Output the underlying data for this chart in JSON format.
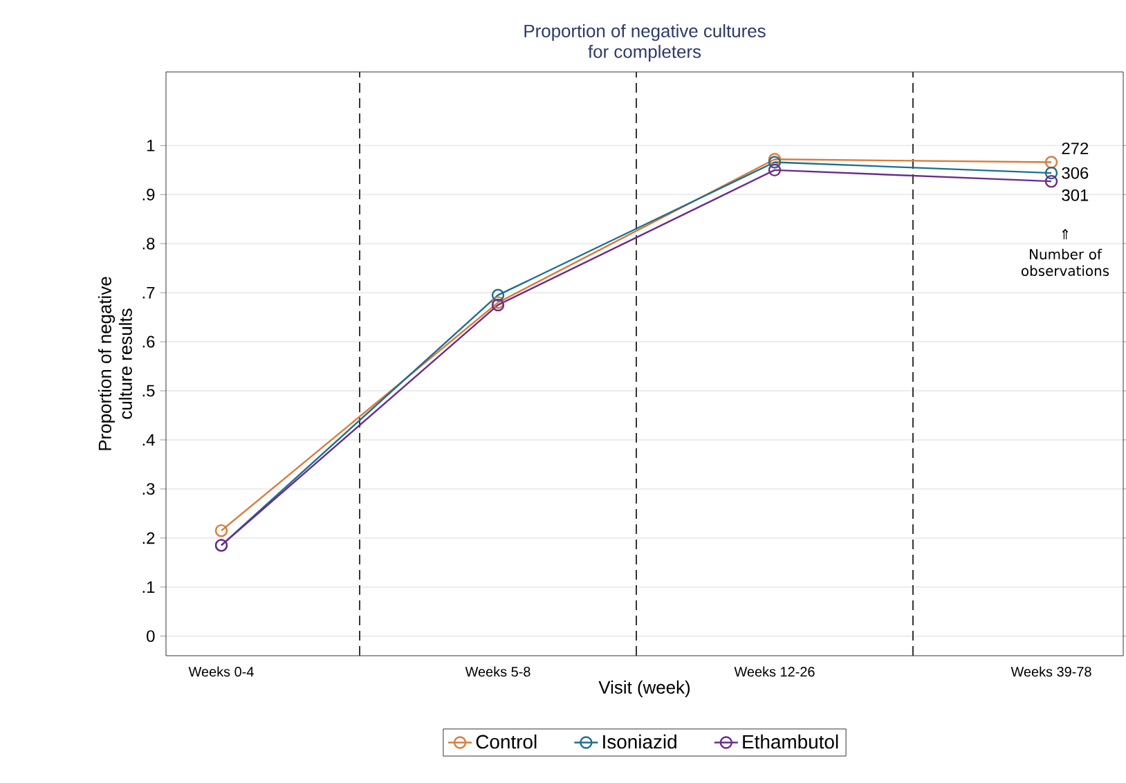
{
  "chart_data": {
    "type": "line",
    "title": "Proportion of negative cultures\nfor completers",
    "xlabel": "Visit (week)",
    "ylabel": "Proportion of negative\nculture results",
    "categories": [
      "Weeks 0-4",
      "Weeks 5-8",
      "Weeks 12-26",
      "Weeks 39-78"
    ],
    "series": [
      {
        "name": "Control",
        "color": "#d97b3a",
        "values": [
          0.215,
          0.68,
          0.972,
          0.966
        ]
      },
      {
        "name": "Isoniazid",
        "color": "#1f6e8c",
        "values": [
          0.185,
          0.695,
          0.966,
          0.944
        ]
      },
      {
        "name": "Ethambutol",
        "color": "#6a2c8a",
        "values": [
          0.185,
          0.675,
          0.95,
          0.927
        ]
      }
    ],
    "ylim": [
      -0.04,
      1.15
    ],
    "yticks": [
      0,
      {
        "value": 0.1,
        "label": ".1"
      },
      {
        "value": 0.2,
        "label": ".2"
      },
      {
        "value": 0.3,
        "label": ".3"
      },
      {
        "value": 0.4,
        "label": ".4"
      },
      {
        "value": 0.5,
        "label": ".5"
      },
      {
        "value": 0.6,
        "label": ".6"
      },
      {
        "value": 0.7,
        "label": ".7"
      },
      {
        "value": 0.8,
        "label": ".8"
      },
      {
        "value": 0.9,
        "label": ".9"
      },
      1
    ],
    "annotations": [
      {
        "text": "272",
        "x": "Weeks 39-78",
        "y": 0.966
      },
      {
        "text": "306",
        "x": "Weeks 39-78",
        "y": 0.944
      },
      {
        "text": "301",
        "x": "Weeks 39-78",
        "y": 0.927
      },
      "⇑",
      "Number of observations"
    ],
    "grid": "y",
    "legend": "bottom",
    "marker": "circle",
    "line_style": "solid"
  }
}
